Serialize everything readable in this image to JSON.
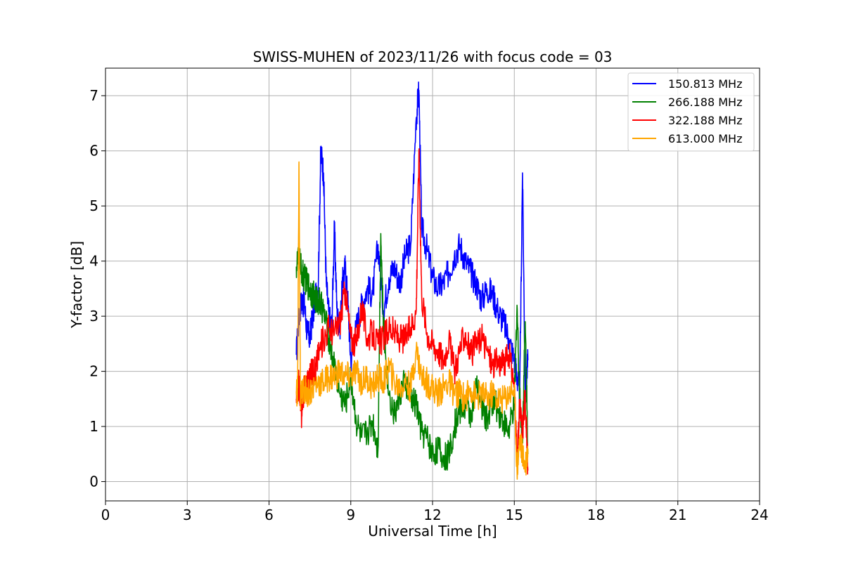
{
  "chart_data": {
    "type": "line",
    "title": "SWISS-MUHEN of 2023/11/26 with focus code = 03",
    "xlabel": "Universal Time [h]",
    "ylabel": "Y-factor [dB]",
    "xlim": [
      0,
      24
    ],
    "ylim": [
      -0.35,
      7.5
    ],
    "xticks": [
      0,
      3,
      6,
      9,
      12,
      15,
      18,
      21,
      24
    ],
    "yticks": [
      0,
      1,
      2,
      3,
      4,
      5,
      6,
      7
    ],
    "grid": true,
    "legend_position": "top-right",
    "series": [
      {
        "name": "150.813 MHz",
        "color": "#0000ff",
        "x": [
          7.0,
          7.1,
          7.2,
          7.3,
          7.4,
          7.5,
          7.6,
          7.7,
          7.8,
          7.9,
          8.0,
          8.1,
          8.2,
          8.3,
          8.4,
          8.5,
          8.6,
          8.7,
          8.8,
          8.9,
          9.0,
          9.2,
          9.4,
          9.6,
          9.8,
          10.0,
          10.2,
          10.4,
          10.6,
          10.8,
          11.0,
          11.2,
          11.4,
          11.5,
          11.6,
          11.8,
          12.0,
          12.2,
          12.4,
          12.6,
          12.8,
          13.0,
          13.2,
          13.4,
          13.6,
          13.8,
          14.0,
          14.2,
          14.4,
          14.6,
          14.8,
          15.0,
          15.1,
          15.2,
          15.3,
          15.4,
          15.5
        ],
        "y": [
          2.3,
          3.0,
          3.3,
          3.2,
          2.7,
          2.6,
          3.0,
          3.3,
          3.5,
          6.0,
          5.6,
          3.6,
          3.0,
          2.8,
          4.6,
          3.0,
          2.8,
          3.6,
          3.9,
          3.2,
          2.2,
          2.8,
          3.2,
          3.5,
          3.4,
          4.3,
          3.1,
          3.7,
          3.9,
          3.6,
          4.1,
          4.3,
          6.6,
          7.1,
          4.6,
          4.2,
          3.7,
          3.5,
          3.6,
          3.8,
          4.1,
          4.3,
          4.0,
          3.8,
          3.6,
          3.3,
          3.5,
          3.4,
          3.1,
          2.9,
          2.6,
          2.2,
          1.9,
          1.6,
          5.6,
          1.6,
          2.2
        ]
      },
      {
        "name": "266.188 MHz",
        "color": "#008000",
        "x": [
          7.0,
          7.1,
          7.2,
          7.3,
          7.4,
          7.5,
          7.6,
          7.7,
          7.8,
          7.9,
          8.0,
          8.2,
          8.4,
          8.6,
          8.8,
          9.0,
          9.2,
          9.4,
          9.6,
          9.8,
          10.0,
          10.1,
          10.2,
          10.4,
          10.6,
          10.8,
          11.0,
          11.2,
          11.4,
          11.6,
          11.8,
          12.0,
          12.2,
          12.4,
          12.6,
          12.8,
          13.0,
          13.2,
          13.4,
          13.6,
          13.8,
          14.0,
          14.2,
          14.4,
          14.6,
          14.8,
          15.0,
          15.1,
          15.2,
          15.3,
          15.4,
          15.5
        ],
        "y": [
          3.9,
          4.1,
          3.8,
          3.7,
          3.6,
          3.5,
          3.4,
          3.3,
          3.3,
          3.2,
          3.1,
          2.6,
          2.1,
          1.6,
          1.4,
          1.9,
          1.1,
          0.8,
          0.9,
          1.1,
          0.6,
          4.5,
          2.8,
          1.6,
          1.2,
          1.6,
          1.8,
          1.5,
          1.4,
          0.9,
          0.8,
          0.5,
          0.6,
          0.4,
          0.5,
          1.0,
          1.3,
          1.4,
          1.2,
          1.7,
          1.4,
          1.1,
          1.5,
          1.3,
          1.1,
          0.9,
          1.4,
          3.2,
          1.5,
          0.8,
          2.9,
          0.5
        ]
      },
      {
        "name": "322.188 MHz",
        "color": "#ff0000",
        "x": [
          7.0,
          7.1,
          7.2,
          7.3,
          7.4,
          7.5,
          7.6,
          7.7,
          7.8,
          8.0,
          8.2,
          8.4,
          8.6,
          8.8,
          9.0,
          9.2,
          9.4,
          9.6,
          9.8,
          10.0,
          10.2,
          10.4,
          10.6,
          10.8,
          11.0,
          11.2,
          11.4,
          11.5,
          11.6,
          11.8,
          12.0,
          12.2,
          12.4,
          12.6,
          12.8,
          13.0,
          13.2,
          13.4,
          13.6,
          13.8,
          14.0,
          14.2,
          14.4,
          14.6,
          14.8,
          15.0,
          15.1,
          15.2,
          15.3,
          15.4,
          15.5
        ],
        "y": [
          1.5,
          1.8,
          1.2,
          1.8,
          1.8,
          1.9,
          2.0,
          2.0,
          2.3,
          2.6,
          2.8,
          2.7,
          2.9,
          3.5,
          2.6,
          2.5,
          3.2,
          2.6,
          2.7,
          2.5,
          2.6,
          2.8,
          2.7,
          2.6,
          2.6,
          2.8,
          3.1,
          6.0,
          3.4,
          2.7,
          2.5,
          2.4,
          2.2,
          2.6,
          2.0,
          2.4,
          2.7,
          2.3,
          2.5,
          2.6,
          2.4,
          2.1,
          2.2,
          2.1,
          2.3,
          1.8,
          0.3,
          1.4,
          0.9,
          1.6,
          0.2
        ]
      },
      {
        "name": "613.000 MHz",
        "color": "#ffa500",
        "x": [
          7.0,
          7.05,
          7.1,
          7.15,
          7.2,
          7.3,
          7.4,
          7.6,
          7.8,
          8.0,
          8.2,
          8.4,
          8.6,
          8.8,
          9.0,
          9.2,
          9.4,
          9.6,
          9.8,
          10.0,
          10.2,
          10.4,
          10.6,
          10.8,
          11.0,
          11.2,
          11.4,
          11.6,
          11.8,
          12.0,
          12.2,
          12.4,
          12.6,
          12.8,
          13.0,
          13.2,
          13.4,
          13.6,
          13.8,
          14.0,
          14.2,
          14.4,
          14.6,
          14.8,
          15.0,
          15.1,
          15.2,
          15.3,
          15.4,
          15.5
        ],
        "y": [
          1.6,
          1.7,
          5.8,
          1.5,
          1.6,
          1.7,
          1.6,
          1.7,
          1.8,
          1.8,
          1.9,
          1.9,
          2.0,
          1.9,
          1.9,
          2.0,
          1.8,
          1.9,
          1.7,
          1.9,
          1.8,
          2.1,
          1.8,
          1.7,
          1.8,
          1.7,
          2.4,
          1.9,
          1.8,
          1.7,
          1.6,
          1.7,
          1.8,
          1.6,
          1.6,
          1.5,
          1.7,
          1.5,
          1.6,
          1.5,
          1.6,
          1.5,
          1.5,
          1.6,
          1.7,
          0.2,
          0.8,
          0.5,
          0.3,
          0.6
        ]
      }
    ]
  }
}
